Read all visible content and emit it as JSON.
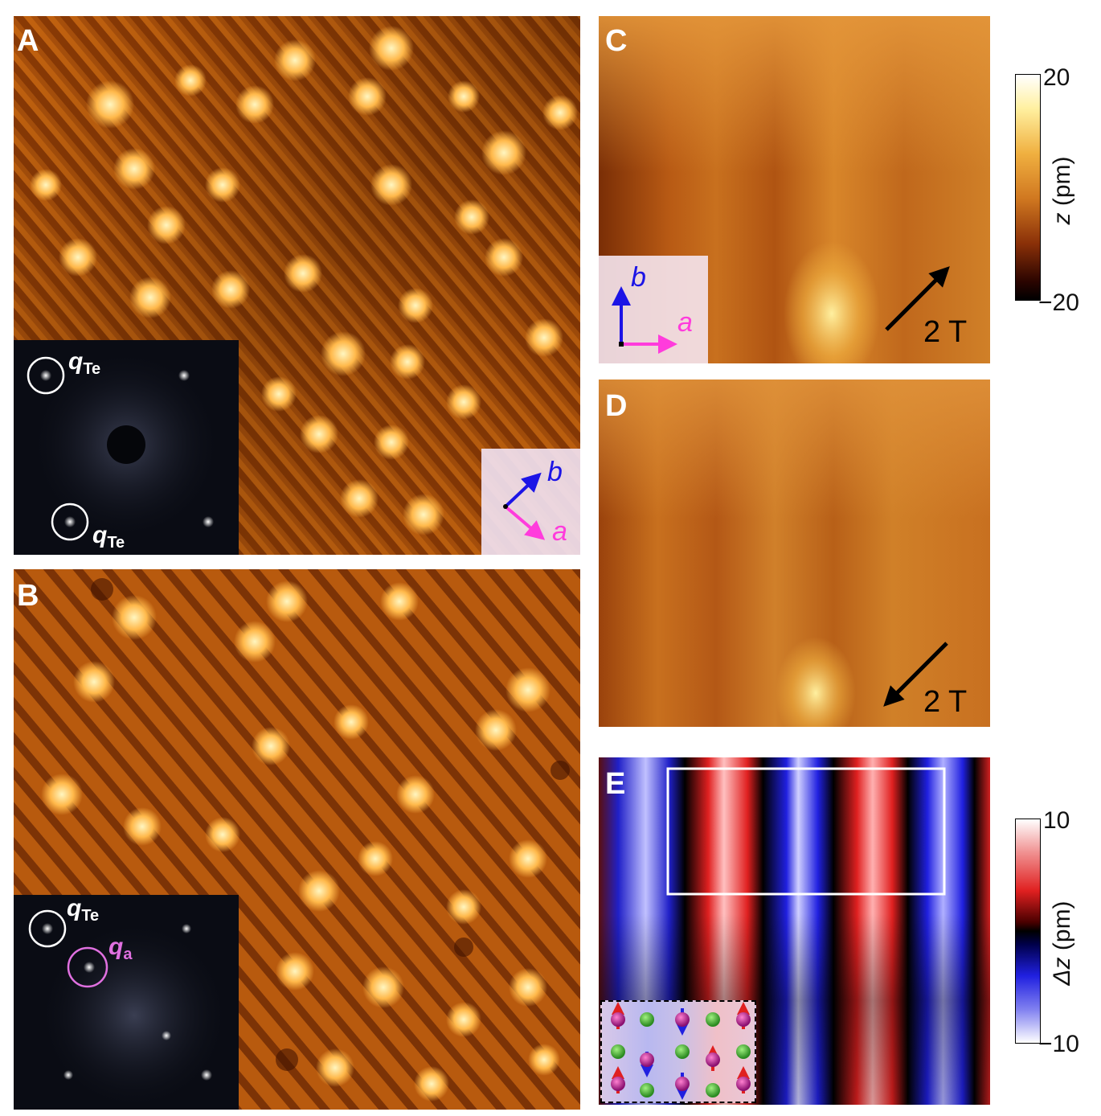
{
  "panels": {
    "A": {
      "label": "A",
      "inset_labels": [
        "q",
        "Te",
        "q",
        "Te"
      ]
    },
    "B": {
      "label": "B",
      "inset_labels": [
        "q",
        "Te",
        "q",
        "a"
      ]
    },
    "C": {
      "label": "C",
      "field": "2 T"
    },
    "D": {
      "label": "D",
      "field": "2 T"
    },
    "E": {
      "label": "E"
    }
  },
  "axes_labels": {
    "b": "b",
    "a": "a"
  },
  "colorbar_top": {
    "title_var": "z",
    "title_unit": " (pm)",
    "max": "20",
    "min": "−20"
  },
  "colorbar_bottom": {
    "title_var": "Δz",
    "title_unit": " (pm)",
    "max": "10",
    "min": "−10"
  },
  "colors": {
    "afm_hot_dark": "#1a0000",
    "afm_hot_mid": "#c8640a",
    "afm_hot_light": "#fff8c8",
    "red": "#e02020",
    "blue": "#2020e0",
    "magenta": "#ff3cdc",
    "axis_blue": "#1c14e6"
  }
}
